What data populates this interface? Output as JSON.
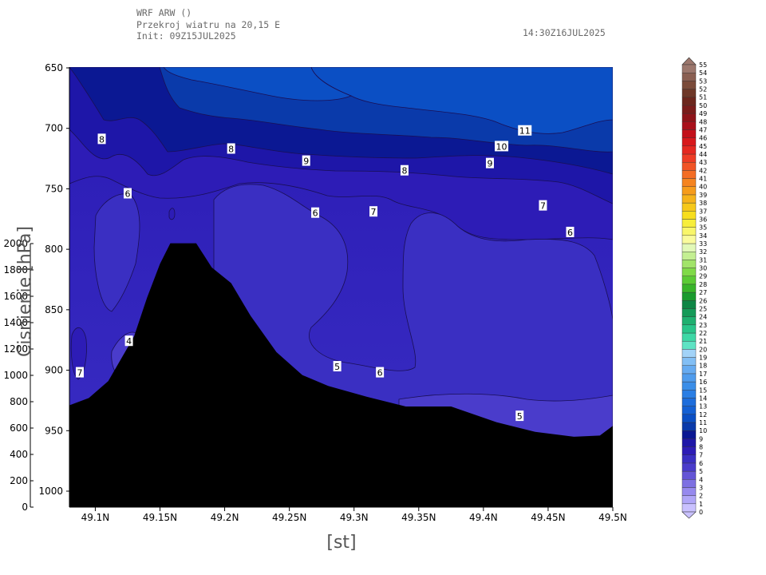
{
  "header": {
    "title": "WRF ARW ()",
    "subtitle": "Przekroj wiatru na 20,15 E",
    "init": "Init: 09Z15JUL2025",
    "valid": "14:30Z16JUL2025"
  },
  "chart_data": {
    "type": "contour",
    "xlabel": "[st]",
    "ylabel": "Cisnienie [hPa]",
    "y2label": "",
    "xlim": [
      49.08,
      49.5
    ],
    "ylim": [
      650,
      1010
    ],
    "x_ticks": [
      49.1,
      49.15,
      49.2,
      49.25,
      49.3,
      49.35,
      49.4,
      49.45,
      49.5
    ],
    "x_tick_labels": [
      "49.1N",
      "49.15N",
      "49.2N",
      "49.25N",
      "49.3N",
      "49.35N",
      "49.4N",
      "49.45N",
      "49.5N"
    ],
    "y_ticks": [
      650,
      700,
      750,
      800,
      850,
      900,
      950,
      1000
    ],
    "y_tick_labels": [
      "650",
      "700",
      "750",
      "800",
      "850",
      "900",
      "950",
      "1000"
    ],
    "y2_ticks": [
      0,
      200,
      400,
      600,
      800,
      1000,
      1200,
      1400,
      1600,
      1800,
      2000
    ],
    "y2_tick_labels": [
      "0",
      "200",
      "400",
      "600",
      "800",
      "1000",
      "1200",
      "1400",
      "1600",
      "1800",
      "2000"
    ],
    "terrain_surface_hPa": [
      [
        49.08,
        929
      ],
      [
        49.095,
        923
      ],
      [
        49.11,
        909
      ],
      [
        49.13,
        872
      ],
      [
        49.14,
        840
      ],
      [
        49.15,
        812
      ],
      [
        49.158,
        795
      ],
      [
        49.178,
        795
      ],
      [
        49.19,
        815
      ],
      [
        49.205,
        828
      ],
      [
        49.22,
        855
      ],
      [
        49.24,
        885
      ],
      [
        49.26,
        904
      ],
      [
        49.28,
        913
      ],
      [
        49.31,
        922
      ],
      [
        49.34,
        930
      ],
      [
        49.375,
        930
      ],
      [
        49.41,
        943
      ],
      [
        49.44,
        951
      ],
      [
        49.47,
        955
      ],
      [
        49.49,
        954
      ],
      [
        49.5,
        946
      ]
    ],
    "contour_labels": [
      {
        "x": 49.105,
        "p": 709,
        "text": "8"
      },
      {
        "x": 49.125,
        "p": 754,
        "text": "6"
      },
      {
        "x": 49.088,
        "p": 902,
        "text": "7"
      },
      {
        "x": 49.126,
        "p": 876,
        "text": "4"
      },
      {
        "x": 49.205,
        "p": 717,
        "text": "8"
      },
      {
        "x": 49.263,
        "p": 727,
        "text": "9"
      },
      {
        "x": 49.27,
        "p": 770,
        "text": "6"
      },
      {
        "x": 49.315,
        "p": 769,
        "text": "7"
      },
      {
        "x": 49.339,
        "p": 735,
        "text": "8"
      },
      {
        "x": 49.405,
        "p": 729,
        "text": "9"
      },
      {
        "x": 49.414,
        "p": 715,
        "text": "10"
      },
      {
        "x": 49.432,
        "p": 702,
        "text": "11"
      },
      {
        "x": 49.446,
        "p": 764,
        "text": "7"
      },
      {
        "x": 49.467,
        "p": 786,
        "text": "6"
      },
      {
        "x": 49.287,
        "p": 897,
        "text": "5"
      },
      {
        "x": 49.32,
        "p": 902,
        "text": "6"
      },
      {
        "x": 49.428,
        "p": 938,
        "text": "5"
      }
    ],
    "colorbar": {
      "levels": [
        0,
        1,
        2,
        3,
        4,
        5,
        6,
        7,
        8,
        9,
        10,
        11,
        12,
        13,
        14,
        15,
        16,
        17,
        18,
        19,
        20,
        21,
        22,
        23,
        24,
        25,
        26,
        27,
        28,
        29,
        30,
        31,
        32,
        33,
        34,
        35,
        36,
        37,
        38,
        39,
        40,
        41,
        42,
        43,
        44,
        45,
        46,
        47,
        48,
        49,
        50,
        51,
        52,
        53,
        54,
        55
      ],
      "colors": [
        "#c9c1ff",
        "#b0a6f8",
        "#9689ee",
        "#7d70e2",
        "#6455d6",
        "#4a3ccb",
        "#3a2fc2",
        "#2d1cb6",
        "#1e16a8",
        "#0b1893",
        "#0a3aaa",
        "#0b4fc4",
        "#1460d4",
        "#1d6ddc",
        "#2a7ee4",
        "#3b8ee8",
        "#4f9ced",
        "#66abf1",
        "#82bff5",
        "#a2d3f8",
        "#5fe3c4",
        "#3ed8a6",
        "#29c58a",
        "#1fb070",
        "#159a58",
        "#0e8645",
        "#1a9b2e",
        "#39b52a",
        "#5ccb35",
        "#80da48",
        "#a2e46a",
        "#c4ef92",
        "#e2f9b8",
        "#fafb9c",
        "#f9f66a",
        "#f7ee3b",
        "#f7de1d",
        "#f6c81a",
        "#f6b31b",
        "#f69c1c",
        "#f58420",
        "#f46d24",
        "#f15426",
        "#ee3c25",
        "#e52820",
        "#d8181b",
        "#c3101a",
        "#a9101b",
        "#8e1419",
        "#7a1c1a",
        "#6c261c",
        "#6e3727",
        "#7a4b3a",
        "#8a5f52",
        "#9c776d"
      ]
    }
  }
}
